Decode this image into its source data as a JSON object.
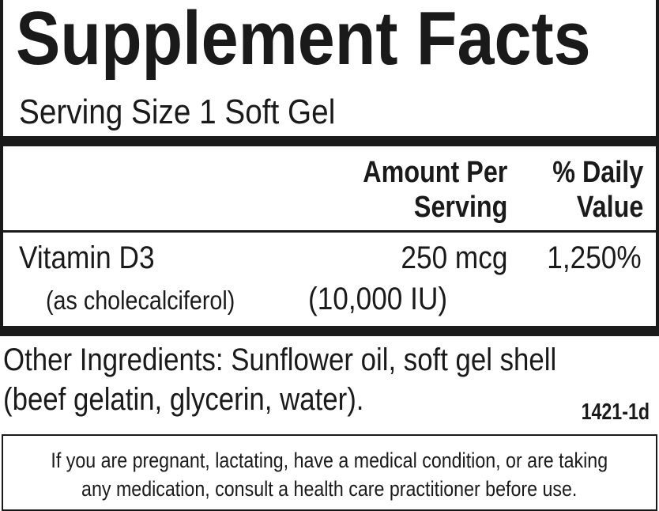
{
  "title": "Supplement Facts",
  "serving_size": "Serving Size 1 Soft Gel",
  "header": {
    "amount_line1": "Amount Per",
    "amount_line2": "Serving",
    "dv_line1": "% Daily",
    "dv_line2": "Value"
  },
  "nutrients": [
    {
      "name": "Vitamin D3",
      "source": "(as cholecalciferol)",
      "amount": "250 mcg",
      "amount_iu": "(10,000 IU)",
      "daily_value": "1,250%"
    }
  ],
  "other_ingredients": {
    "line1": "Other Ingredients: Sunflower oil, soft gel shell",
    "line2": "(beef gelatin, glycerin, water)."
  },
  "code": "1421-1d",
  "warning": {
    "line1": "If you are pregnant, lactating, have a medical condition, or are taking",
    "line2": "any medication, consult a health care practitioner before use."
  }
}
